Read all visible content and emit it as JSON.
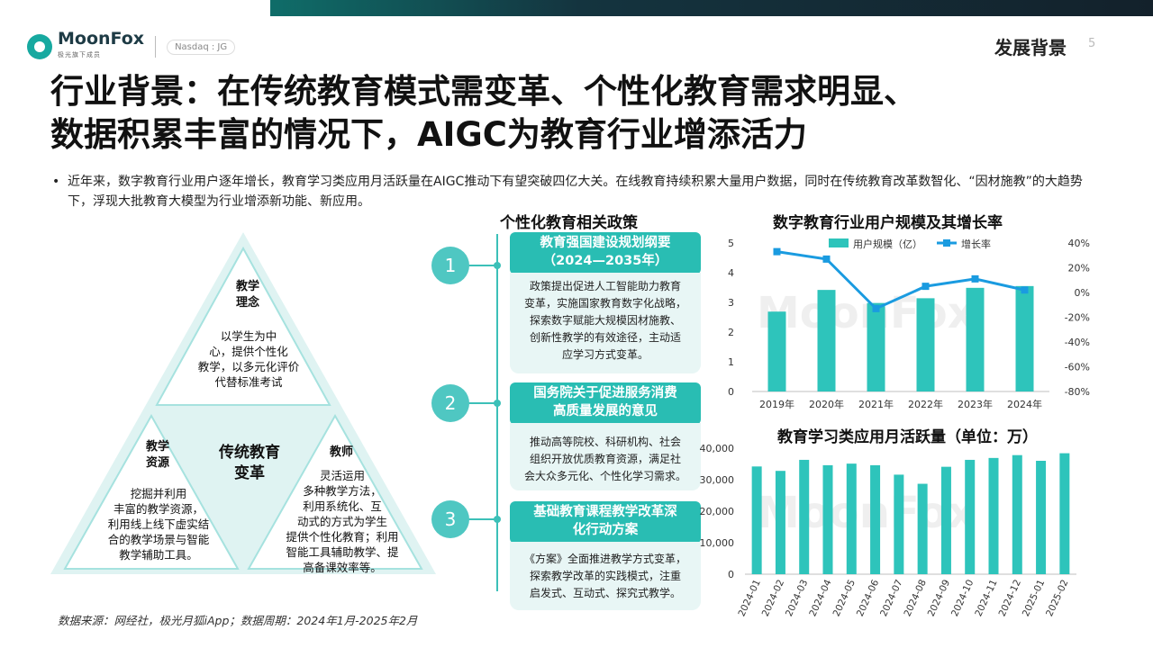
{
  "header": {
    "brand": "MoonFox",
    "brand_sub": "极光旗下成员",
    "ticker": "Nasdaq : JG",
    "section": "发展背景",
    "page": "5"
  },
  "title_lines": [
    "行业背景：在传统教育模式需变革、个性化教育需求明显、",
    "数据积累丰富的情况下，AIGC为教育行业增添活力"
  ],
  "intro": "近年来，数字教育行业用户逐年增长，教育学习类应用月活跃量在AIGC推动下有望突破四亿大关。在线教育持续积累大量用户数据，同时在传统教育改革数智化、“因材施教”的大趋势下，浮现大批教育大模型为行业增添新功能、新应用。",
  "triangle": {
    "center": [
      "传统教育",
      "变革"
    ],
    "top": {
      "head": [
        "教学",
        "理念"
      ],
      "text": [
        "以学生为中",
        "心，提供个性化",
        "教学，以多元化评价",
        "代替标准考试"
      ]
    },
    "left": {
      "head": [
        "教学",
        "资源"
      ],
      "text": [
        "挖掘并利用",
        "丰富的教学资源，",
        "利用线上线下虚实结",
        "合的教学场景与智能",
        "教学辅助工具。"
      ]
    },
    "right": {
      "head": [
        "教师"
      ],
      "text": [
        "灵活运用",
        "多种教学方法，",
        "利用系统化、互",
        "动式的方式为学生",
        "提供个性化教育；利用",
        "智能工具辅助教学、提",
        "高备课效率等。"
      ]
    }
  },
  "policies": {
    "title": "个性化教育相关政策",
    "items": [
      {
        "num": "1",
        "head": [
          "教育强国建设规划纲要",
          "（2024—2035年）"
        ],
        "body": [
          "政策提出促进人工智能助力教育",
          "变革，实施国家教育数字化战略，",
          "探索数字赋能大规模因材施教、",
          "创新性教学的有效途径，主动适",
          "应学习方式变革。"
        ]
      },
      {
        "num": "2",
        "head": [
          "国务院关于促进服务消费",
          "高质量发展的意见"
        ],
        "body": [
          "推动高等院校、科研机构、社会",
          "组织开放优质教育资源，满足社",
          "会大众多元化、个性化学习需求。"
        ]
      },
      {
        "num": "3",
        "head": [
          "基础教育课程教学改革深",
          "化行动方案"
        ],
        "body": [
          "《方案》全面推进教学方式变革，",
          "探索教学改革的实践模式，注重",
          "启发式、互动式、探究式教学。"
        ]
      }
    ]
  },
  "chart_data": [
    {
      "type": "bar",
      "title": "数字教育行业用户规模及其增长率",
      "categories": [
        "2019年",
        "2020年",
        "2021年",
        "2022年",
        "2023年",
        "2024年"
      ],
      "series": [
        {
          "name": "用户规模（亿）",
          "type": "bar",
          "axis": "left",
          "values": [
            2.69,
            3.42,
            2.98,
            3.14,
            3.49,
            3.55
          ]
        },
        {
          "name": "增长率",
          "type": "line",
          "axis": "right",
          "values": [
            33,
            27,
            -13,
            5,
            11,
            2
          ]
        }
      ],
      "ylim": [
        0,
        5
      ],
      "yticks": [
        "0",
        "1",
        "2",
        "3",
        "4",
        "5"
      ],
      "y2lim": [
        -80,
        40
      ],
      "y2ticks": [
        "40%",
        "20%",
        "0%",
        "-20%",
        "-40%",
        "-60%",
        "-80%"
      ],
      "legend": "top",
      "color": "#2ec4bb"
    },
    {
      "type": "bar",
      "title": "教育学习类应用月活跃量（单位：万）",
      "categories": [
        "2024-01",
        "2024-02",
        "2024-03",
        "2024-04",
        "2024-05",
        "2024-06",
        "2024-07",
        "2024-08",
        "2024-09",
        "2024-10",
        "2024-11",
        "2024-12",
        "2025-01",
        "2025-02"
      ],
      "values": [
        34200,
        32800,
        36300,
        34600,
        35100,
        34600,
        31600,
        28700,
        34100,
        36300,
        36900,
        37800,
        36000,
        38400
      ],
      "ylim": [
        0,
        40000
      ],
      "yticks": [
        "0",
        "10,000",
        "20,000",
        "30,000",
        "40,000"
      ],
      "color": "#2ec4bb"
    }
  ],
  "watermark": "MoonFox",
  "source": "数据来源：网经社，极光月狐iApp；数据周期：2024年1月-2025年2月",
  "colors": {
    "accent": "#2ec4bb",
    "accent_dark": "#29bdb3",
    "light": "#e8f6f5"
  }
}
